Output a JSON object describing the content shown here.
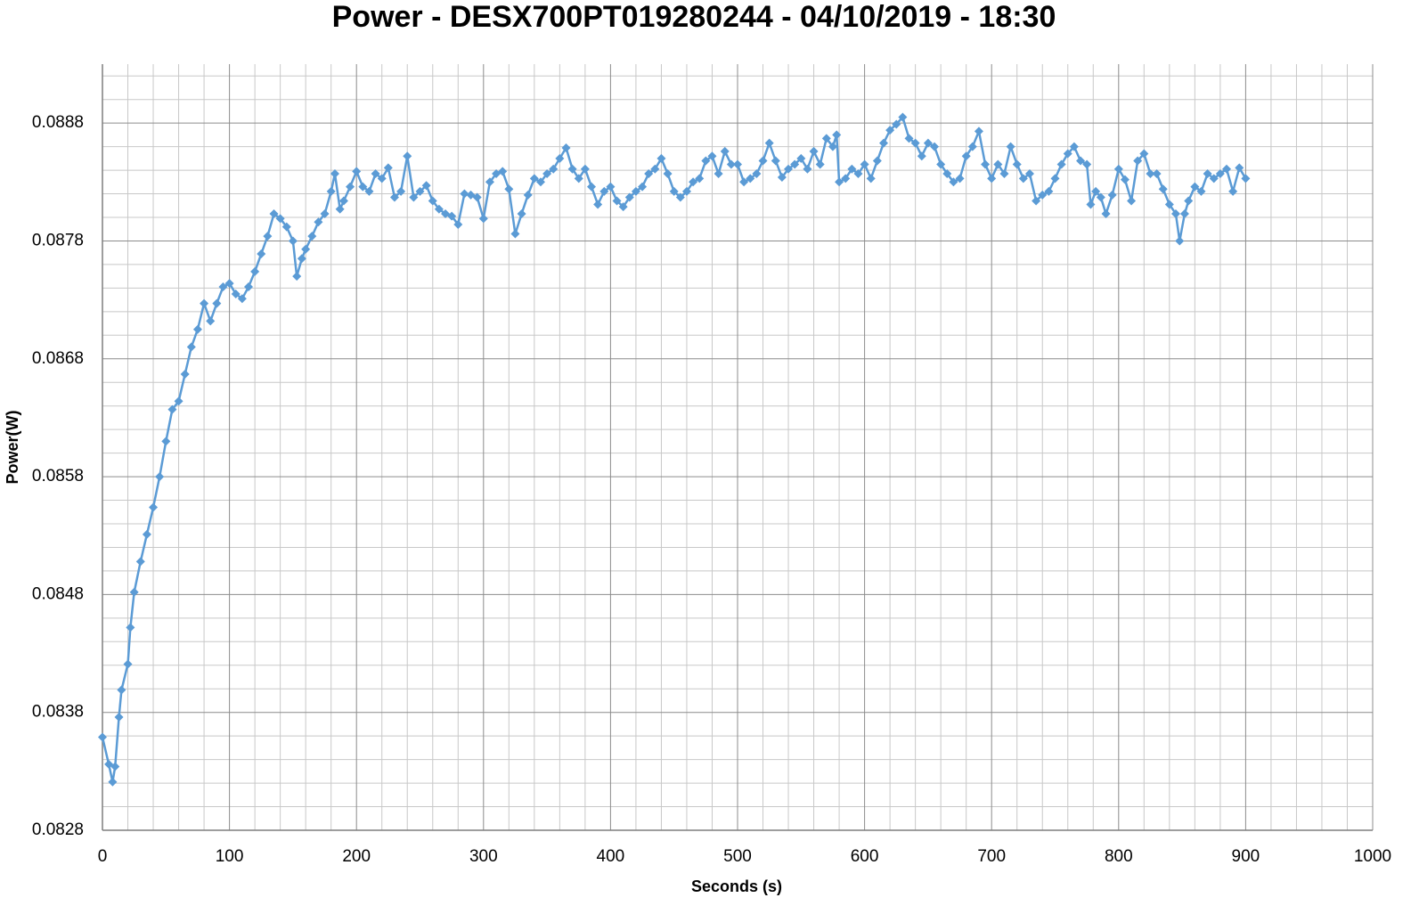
{
  "chart_data": {
    "type": "line",
    "title": "Power - DESX700PT019280244 - 04/10/2019 - 18:30",
    "x_label": "Seconds (s)",
    "y_label": "Power(W)",
    "xlim": [
      0,
      1000
    ],
    "xticks": [
      0,
      100,
      200,
      300,
      400,
      500,
      600,
      700,
      800,
      900,
      1000
    ],
    "ylim": [
      0.0828,
      0.0893
    ],
    "yticks": [
      0.0828,
      0.0838,
      0.0848,
      0.0858,
      0.0868,
      0.0878,
      0.0888
    ],
    "grid": true,
    "marker": "diamond",
    "x": [
      0,
      5,
      8,
      10,
      13,
      15,
      20,
      22,
      25,
      30,
      35,
      40,
      45,
      50,
      55,
      60,
      65,
      70,
      75,
      80,
      85,
      90,
      95,
      100,
      105,
      110,
      115,
      120,
      125,
      130,
      135,
      140,
      145,
      150,
      153,
      157,
      160,
      165,
      170,
      175,
      180,
      183,
      187,
      190,
      195,
      200,
      205,
      210,
      215,
      220,
      225,
      230,
      235,
      240,
      245,
      250,
      255,
      260,
      265,
      270,
      275,
      280,
      285,
      290,
      295,
      300,
      305,
      310,
      315,
      320,
      325,
      330,
      335,
      340,
      345,
      350,
      355,
      360,
      365,
      370,
      375,
      380,
      385,
      390,
      395,
      400,
      405,
      410,
      415,
      420,
      425,
      430,
      435,
      440,
      445,
      450,
      455,
      460,
      465,
      470,
      475,
      480,
      485,
      490,
      495,
      500,
      505,
      510,
      515,
      520,
      525,
      530,
      535,
      540,
      545,
      550,
      555,
      560,
      565,
      570,
      575,
      578,
      580,
      585,
      590,
      595,
      600,
      605,
      610,
      615,
      620,
      625,
      630,
      635,
      640,
      645,
      650,
      655,
      660,
      665,
      670,
      675,
      680,
      685,
      690,
      695,
      700,
      705,
      710,
      715,
      720,
      725,
      730,
      735,
      740,
      745,
      750,
      755,
      760,
      765,
      770,
      775,
      778,
      782,
      786,
      790,
      795,
      800,
      805,
      810,
      815,
      820,
      825,
      830,
      835,
      840,
      845,
      848,
      852,
      855,
      860,
      865,
      870,
      875,
      880,
      885,
      890,
      895,
      900
    ],
    "series": [
      {
        "name": "Power",
        "color": "#5b9bd5",
        "values": [
          0.08359,
          0.08336,
          0.08321,
          0.08334,
          0.08376,
          0.08399,
          0.08421,
          0.08452,
          0.08482,
          0.08508,
          0.08531,
          0.08554,
          0.0858,
          0.0861,
          0.08637,
          0.08644,
          0.08667,
          0.0869,
          0.08705,
          0.08727,
          0.08712,
          0.08727,
          0.08741,
          0.08744,
          0.08735,
          0.08731,
          0.08741,
          0.08754,
          0.08769,
          0.08784,
          0.08803,
          0.08799,
          0.08792,
          0.0878,
          0.0875,
          0.08765,
          0.08773,
          0.08784,
          0.08796,
          0.08803,
          0.08822,
          0.08837,
          0.08807,
          0.08814,
          0.08826,
          0.08839,
          0.08826,
          0.08822,
          0.08837,
          0.08833,
          0.08842,
          0.08817,
          0.08822,
          0.08852,
          0.08817,
          0.08822,
          0.08827,
          0.08814,
          0.08807,
          0.08803,
          0.08801,
          0.08794,
          0.0882,
          0.08819,
          0.08817,
          0.08799,
          0.0883,
          0.08837,
          0.08839,
          0.08824,
          0.08786,
          0.08803,
          0.08819,
          0.08833,
          0.0883,
          0.08837,
          0.08841,
          0.0885,
          0.08859,
          0.08841,
          0.08833,
          0.08841,
          0.08826,
          0.08811,
          0.08822,
          0.08826,
          0.08814,
          0.08809,
          0.08817,
          0.08822,
          0.08826,
          0.08837,
          0.08841,
          0.0885,
          0.08837,
          0.08822,
          0.08817,
          0.08822,
          0.0883,
          0.08833,
          0.08848,
          0.08852,
          0.08837,
          0.08856,
          0.08845,
          0.08845,
          0.0883,
          0.08833,
          0.08837,
          0.08848,
          0.08863,
          0.08848,
          0.08834,
          0.08841,
          0.08845,
          0.0885,
          0.08841,
          0.08856,
          0.08845,
          0.08867,
          0.0886,
          0.0887,
          0.0883,
          0.08833,
          0.08841,
          0.08837,
          0.08845,
          0.08833,
          0.08848,
          0.08863,
          0.08874,
          0.08879,
          0.08885,
          0.08867,
          0.08863,
          0.08852,
          0.08863,
          0.0886,
          0.08845,
          0.08837,
          0.0883,
          0.08833,
          0.08852,
          0.0886,
          0.08873,
          0.08845,
          0.08833,
          0.08845,
          0.08837,
          0.0886,
          0.08845,
          0.08833,
          0.08837,
          0.08814,
          0.08819,
          0.08822,
          0.08833,
          0.08845,
          0.08854,
          0.0886,
          0.08848,
          0.08845,
          0.08811,
          0.08822,
          0.08817,
          0.08803,
          0.08819,
          0.08841,
          0.08832,
          0.08814,
          0.08848,
          0.08854,
          0.08837,
          0.08837,
          0.08824,
          0.08811,
          0.08803,
          0.0878,
          0.08803,
          0.08814,
          0.08826,
          0.08822,
          0.08837,
          0.08833,
          0.08837,
          0.08841,
          0.08822,
          0.08842,
          0.08833
        ]
      }
    ]
  }
}
